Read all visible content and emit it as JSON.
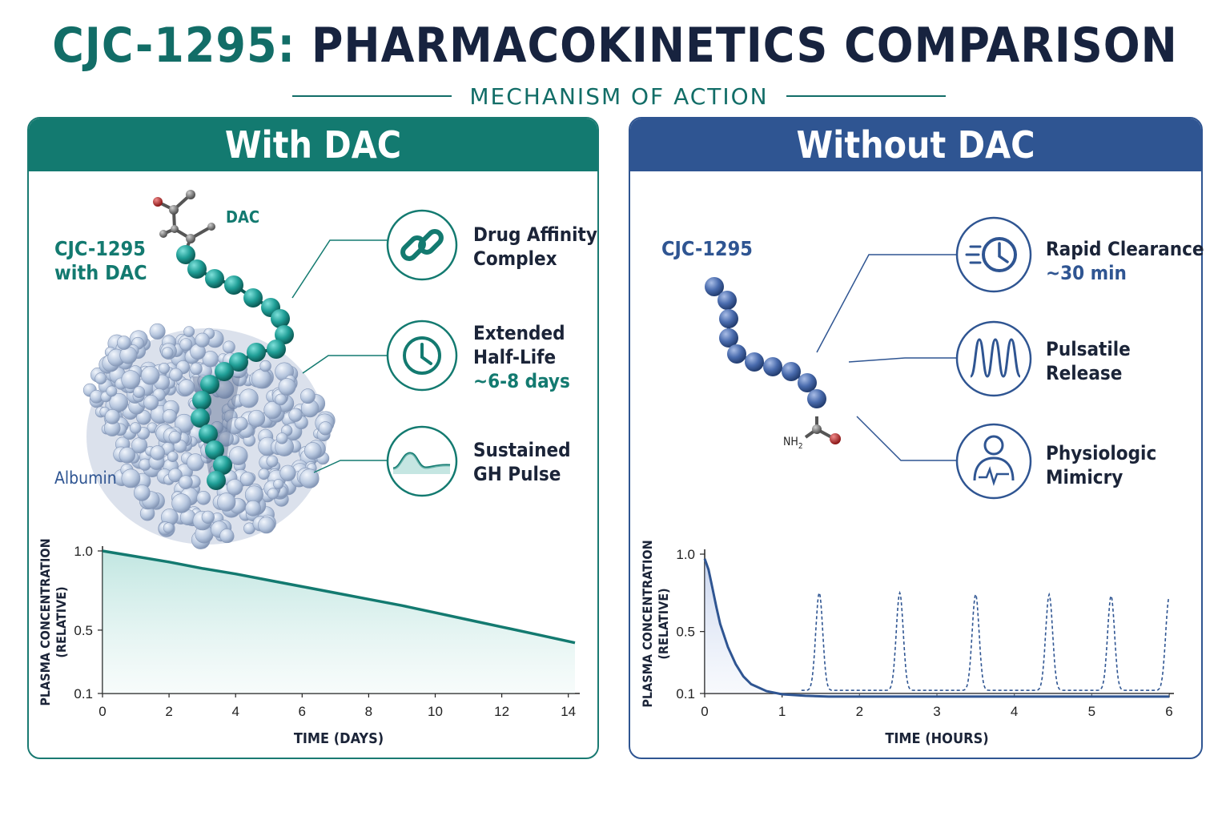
{
  "header": {
    "title_prefix": "CJC-1295:",
    "title_main": "PHARMACOKINETICS COMPARISON",
    "subtitle": "MECHANISM OF ACTION"
  },
  "left_panel": {
    "title": "With DAC",
    "molecule_label_line1": "CJC-1295",
    "molecule_label_line2": "with DAC",
    "dac_label": "DAC",
    "albumin_label": "Albumin",
    "features": [
      {
        "icon": "link-icon",
        "line1": "Drug Affinity",
        "line2": "Complex",
        "highlight": ""
      },
      {
        "icon": "clock-icon",
        "line1": "Extended",
        "line2": "Half-Life",
        "highlight": "~6-8 days"
      },
      {
        "icon": "wave-icon",
        "line1": "Sustained",
        "line2": "GH Pulse",
        "highlight": ""
      }
    ]
  },
  "right_panel": {
    "title": "Without DAC",
    "molecule_label": "CJC-1295",
    "nh2_label": "NH",
    "nh2_subscript": "2",
    "features": [
      {
        "icon": "fast-clock-icon",
        "line1": "Rapid Clearance",
        "line2": "",
        "highlight": "~30 min"
      },
      {
        "icon": "pulse-peaks-icon",
        "line1": "Pulsatile",
        "line2": "Release",
        "highlight": ""
      },
      {
        "icon": "person-ecg-icon",
        "line1": "Physiologic",
        "line2": "Mimicry",
        "highlight": ""
      }
    ]
  },
  "chart_data": [
    {
      "type": "area",
      "xlabel": "TIME (DAYS)",
      "ylabel_line1": "PLASMA CONCENTRATION",
      "ylabel_line2": "(RELATIVE)",
      "xlim": [
        0,
        14.2
      ],
      "ylim": [
        0.1,
        1.0
      ],
      "xticks": [
        0,
        2,
        4,
        6,
        8,
        10,
        12,
        14
      ],
      "yticks": [
        0.1,
        0.5,
        1.0
      ],
      "ytick_labels": [
        "0.1",
        "0.5",
        "1.0"
      ],
      "color": "#137a70",
      "series": [
        {
          "x": [
            0,
            1,
            2,
            3,
            4,
            5,
            6,
            7,
            8,
            9,
            10,
            11,
            12,
            13,
            14.2
          ],
          "values": [
            1.0,
            0.965,
            0.93,
            0.89,
            0.855,
            0.815,
            0.775,
            0.735,
            0.695,
            0.655,
            0.61,
            0.565,
            0.52,
            0.475,
            0.42
          ]
        }
      ]
    },
    {
      "type": "line",
      "xlabel": "TIME (HOURS)",
      "ylabel_line1": "PLASMA CONCENTRATION",
      "ylabel_line2": "(RELATIVE)",
      "xlim": [
        0,
        6
      ],
      "ylim": [
        0.1,
        1.0
      ],
      "xticks": [
        0,
        1,
        2,
        3,
        4,
        5,
        6
      ],
      "yticks": [
        0.1,
        0.5,
        1.0
      ],
      "ytick_labels": [
        "0.1",
        "0.5",
        "1.0"
      ],
      "color": "#2f5592",
      "series": [
        {
          "style": "solid",
          "x": [
            0,
            0.05,
            0.1,
            0.15,
            0.2,
            0.3,
            0.4,
            0.5,
            0.6,
            0.8,
            1.0,
            1.3,
            1.6,
            2.0,
            3.0,
            4.0,
            5.0,
            6.0
          ],
          "values": [
            0.97,
            0.9,
            0.78,
            0.66,
            0.55,
            0.4,
            0.29,
            0.21,
            0.16,
            0.115,
            0.095,
            0.085,
            0.08,
            0.08,
            0.08,
            0.08,
            0.08,
            0.08
          ]
        },
        {
          "style": "dashed",
          "baseline": 0.12,
          "peak_times": [
            1.48,
            2.52,
            3.5,
            4.45,
            5.25,
            6.0
          ],
          "peak_values": [
            0.75,
            0.75,
            0.74,
            0.74,
            0.73,
            0.72
          ]
        }
      ]
    }
  ]
}
